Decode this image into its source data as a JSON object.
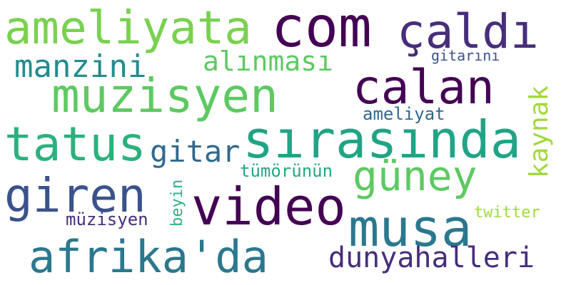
{
  "words": [
    {
      "text": "ameliyata",
      "color": "#7ad151",
      "orientation": "horizontal"
    },
    {
      "text": "com",
      "color": "#440154",
      "orientation": "horizontal"
    },
    {
      "text": "çaldı",
      "color": "#472d7b",
      "orientation": "horizontal"
    },
    {
      "text": "manzini",
      "color": "#228c8d",
      "orientation": "horizontal"
    },
    {
      "text": "alınması",
      "color": "#5ec962",
      "orientation": "horizontal"
    },
    {
      "text": "gitarını",
      "color": "#3b528b",
      "orientation": "horizontal"
    },
    {
      "text": "muzisyen",
      "color": "#5ec962",
      "orientation": "horizontal"
    },
    {
      "text": "calan",
      "color": "#440154",
      "orientation": "horizontal"
    },
    {
      "text": "ameliyat",
      "color": "#31688e",
      "orientation": "horizontal"
    },
    {
      "text": "kaynak",
      "color": "#a0da39",
      "orientation": "vertical"
    },
    {
      "text": "tatus",
      "color": "#2cb17e",
      "orientation": "horizontal"
    },
    {
      "text": "sırasında",
      "color": "#20a486",
      "orientation": "horizontal"
    },
    {
      "text": "gitar",
      "color": "#31688e",
      "orientation": "horizontal"
    },
    {
      "text": "güney",
      "color": "#5ec962",
      "orientation": "horizontal"
    },
    {
      "text": "tümörünün",
      "color": "#22a884",
      "orientation": "horizontal"
    },
    {
      "text": "beyin",
      "color": "#2cb17e",
      "orientation": "vertical"
    },
    {
      "text": "giren",
      "color": "#3b528b",
      "orientation": "horizontal"
    },
    {
      "text": "video",
      "color": "#440154",
      "orientation": "horizontal"
    },
    {
      "text": "musa",
      "color": "#2a788e",
      "orientation": "horizontal"
    },
    {
      "text": "twitter",
      "color": "#a0da39",
      "orientation": "horizontal"
    },
    {
      "text": "müzisyen",
      "color": "#472d7b",
      "orientation": "horizontal"
    },
    {
      "text": "afrika'da",
      "color": "#2a788e",
      "orientation": "horizontal"
    },
    {
      "text": "dunyahalleri",
      "color": "#472d7b",
      "orientation": "horizontal"
    }
  ]
}
